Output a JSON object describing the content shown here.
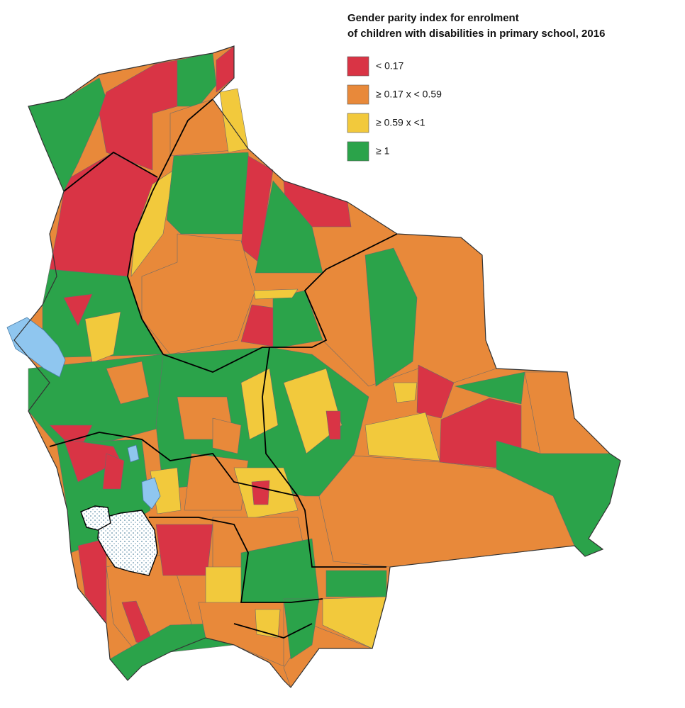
{
  "title": [
    "Gender parity index for enrolment",
    "of children with disabilities in primary school, 2016"
  ],
  "legend": [
    {
      "label": "< 0.17",
      "color": "#d93445"
    },
    {
      "label": "≥ 0.17 x < 0.59",
      "color": "#e8893a"
    },
    {
      "label": "≥ 0.59 x <1",
      "color": "#f2c93c"
    },
    {
      "label": "≥ 1",
      "color": "#2ba34a"
    }
  ]
}
